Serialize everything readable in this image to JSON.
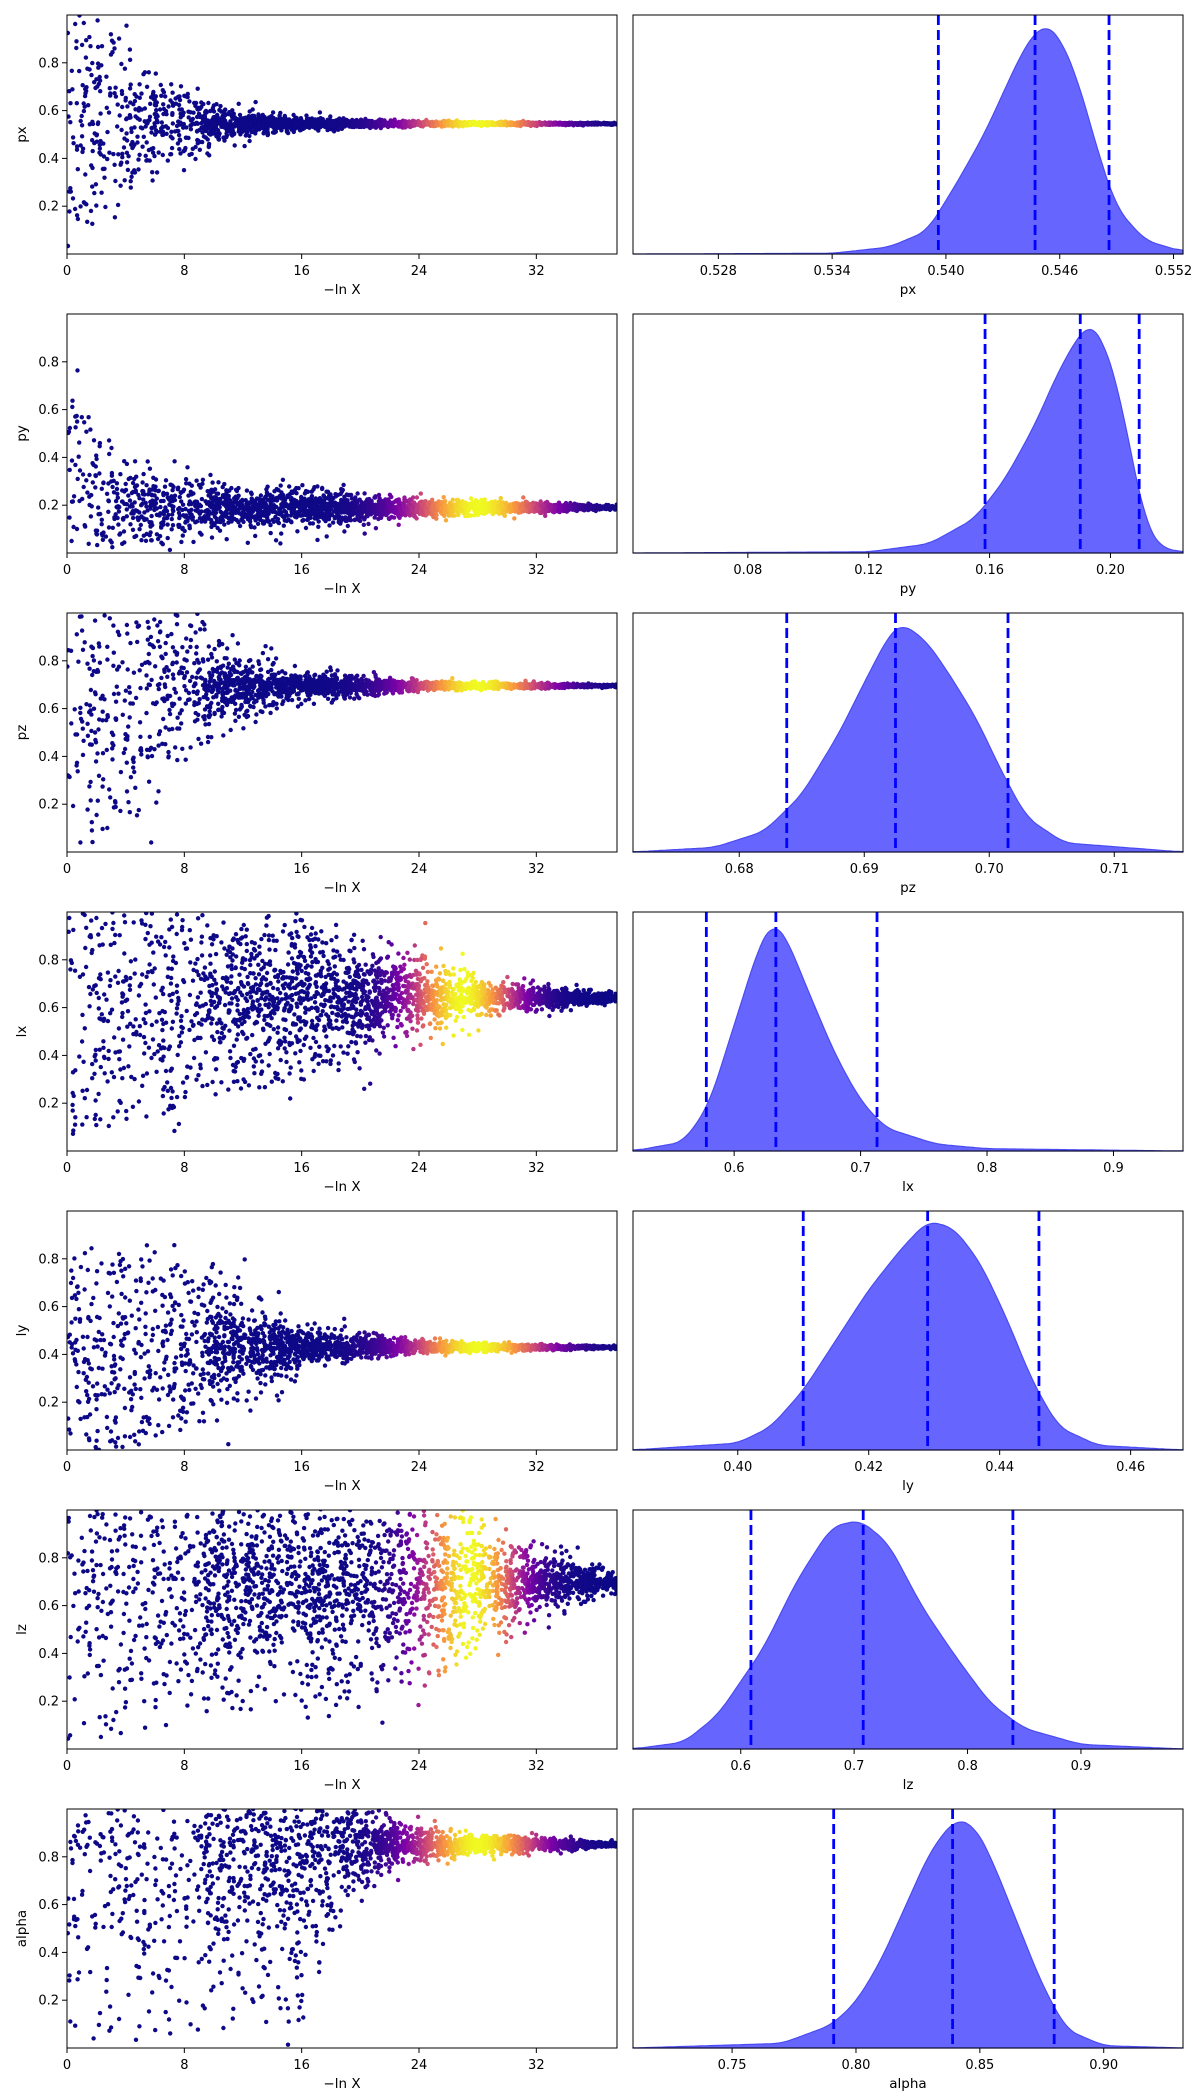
{
  "figure": {
    "colors": {
      "posterior_fill": "#6666ff",
      "posterior_edge": "#4a4af2",
      "quantile_line": "#0000ff",
      "trace_colormap": [
        "#0d0887",
        "#7e03a8",
        "#cc4778",
        "#f89540",
        "#f0f921"
      ]
    }
  },
  "chart_data": [
    {
      "type": "scatter",
      "name": "trace-px",
      "xlabel": "−ln X",
      "ylabel": "px",
      "xlim": [
        0,
        37.5
      ],
      "ylim": [
        0,
        1
      ],
      "x_ticks": [
        0,
        8,
        16,
        24,
        32
      ],
      "x_tick_labels": [
        "0",
        "8",
        "16",
        "24",
        "32"
      ],
      "y_ticks": [
        0.2,
        0.4,
        0.6,
        0.8
      ],
      "y_tick_labels": [
        "0.2",
        "0.4",
        "0.6",
        "0.8"
      ],
      "envelope": {
        "center": 0.545,
        "spread": [
          [
            0,
            0.5
          ],
          [
            3,
            0.42
          ],
          [
            6,
            0.22
          ],
          [
            10,
            0.1
          ],
          [
            16,
            0.03
          ],
          [
            24,
            0.012
          ],
          [
            37.5,
            0.004
          ]
        ],
        "floor": 0,
        "ceil": 1
      },
      "weight_peak": 28,
      "weight_width": 3.3
    },
    {
      "type": "area",
      "name": "posterior-px",
      "xlabel": "px",
      "xlim": [
        0.5235,
        0.5525
      ],
      "x_ticks": [
        0.528,
        0.534,
        0.54,
        0.546,
        0.552
      ],
      "x_tick_labels": [
        "0.528",
        "0.534",
        "0.540",
        "0.546",
        "0.552"
      ],
      "density": [
        [
          0.5235,
          0
        ],
        [
          0.534,
          0.003
        ],
        [
          0.537,
          0.03
        ],
        [
          0.539,
          0.1
        ],
        [
          0.5405,
          0.3
        ],
        [
          0.542,
          0.52
        ],
        [
          0.543,
          0.7
        ],
        [
          0.544,
          0.88
        ],
        [
          0.5448,
          0.98
        ],
        [
          0.5453,
          1.0
        ],
        [
          0.546,
          0.95
        ],
        [
          0.547,
          0.75
        ],
        [
          0.548,
          0.45
        ],
        [
          0.549,
          0.2
        ],
        [
          0.5505,
          0.06
        ],
        [
          0.5525,
          0.01
        ]
      ],
      "quantiles": [
        0.5396,
        0.5447,
        0.5486
      ]
    },
    {
      "type": "scatter",
      "name": "trace-py",
      "xlabel": "−ln X",
      "ylabel": "py",
      "xlim": [
        0,
        37.5
      ],
      "ylim": [
        0,
        1
      ],
      "x_ticks": [
        0,
        8,
        16,
        24,
        32
      ],
      "x_tick_labels": [
        "0",
        "8",
        "16",
        "24",
        "32"
      ],
      "y_ticks": [
        0.2,
        0.4,
        0.6,
        0.8
      ],
      "y_tick_labels": [
        "0.2",
        "0.4",
        "0.6",
        "0.8"
      ],
      "envelope": {
        "center": 0.19,
        "spread": [
          [
            0,
            0.8
          ],
          [
            1,
            0.6
          ],
          [
            2,
            0.4
          ],
          [
            4,
            0.2
          ],
          [
            8,
            0.14
          ],
          [
            16,
            0.1
          ],
          [
            24,
            0.045
          ],
          [
            37.5,
            0.01
          ]
        ],
        "floor": 0,
        "ceil": 1
      },
      "weight_peak": 28,
      "weight_width": 3.3
    },
    {
      "type": "area",
      "name": "posterior-py",
      "xlabel": "py",
      "xlim": [
        0.042,
        0.224
      ],
      "x_ticks": [
        0.08,
        0.12,
        0.16,
        0.2
      ],
      "x_tick_labels": [
        "0.08",
        "0.12",
        "0.16",
        "0.20"
      ],
      "density": [
        [
          0.042,
          0
        ],
        [
          0.12,
          0.005
        ],
        [
          0.14,
          0.04
        ],
        [
          0.155,
          0.15
        ],
        [
          0.165,
          0.32
        ],
        [
          0.175,
          0.56
        ],
        [
          0.183,
          0.8
        ],
        [
          0.19,
          0.96
        ],
        [
          0.193,
          1.0
        ],
        [
          0.197,
          0.95
        ],
        [
          0.203,
          0.7
        ],
        [
          0.208,
          0.35
        ],
        [
          0.212,
          0.12
        ],
        [
          0.216,
          0.03
        ],
        [
          0.224,
          0
        ]
      ],
      "quantiles": [
        0.1585,
        0.19,
        0.2095
      ]
    },
    {
      "type": "scatter",
      "name": "trace-pz",
      "xlabel": "−ln X",
      "ylabel": "pz",
      "xlim": [
        0,
        37.5
      ],
      "ylim": [
        0,
        1
      ],
      "x_ticks": [
        0,
        8,
        16,
        24,
        32
      ],
      "x_tick_labels": [
        "0",
        "8",
        "16",
        "24",
        "32"
      ],
      "y_ticks": [
        0.2,
        0.4,
        0.6,
        0.8
      ],
      "y_tick_labels": [
        "0.2",
        "0.4",
        "0.6",
        "0.8"
      ],
      "envelope": {
        "center": 0.695,
        "spread": [
          [
            0,
            0.7
          ],
          [
            4,
            0.6
          ],
          [
            8,
            0.35
          ],
          [
            12,
            0.15
          ],
          [
            16,
            0.07
          ],
          [
            24,
            0.025
          ],
          [
            37.5,
            0.005
          ]
        ],
        "floor": 0,
        "ceil": 1
      },
      "weight_peak": 28,
      "weight_width": 3.3
    },
    {
      "type": "area",
      "name": "posterior-pz",
      "xlabel": "pz",
      "xlim": [
        0.6715,
        0.7155
      ],
      "x_ticks": [
        0.68,
        0.69,
        0.7,
        0.71
      ],
      "x_tick_labels": [
        "0.68",
        "0.69",
        "0.70",
        "0.71"
      ],
      "density": [
        [
          0.6715,
          0
        ],
        [
          0.678,
          0.02
        ],
        [
          0.682,
          0.09
        ],
        [
          0.685,
          0.25
        ],
        [
          0.688,
          0.52
        ],
        [
          0.69,
          0.74
        ],
        [
          0.692,
          0.95
        ],
        [
          0.693,
          1.0
        ],
        [
          0.695,
          0.92
        ],
        [
          0.697,
          0.76
        ],
        [
          0.699,
          0.58
        ],
        [
          0.701,
          0.35
        ],
        [
          0.703,
          0.15
        ],
        [
          0.706,
          0.04
        ],
        [
          0.7155,
          0
        ]
      ],
      "quantiles": [
        0.6838,
        0.6925,
        0.7015
      ]
    },
    {
      "type": "scatter",
      "name": "trace-lx",
      "xlabel": "−ln X",
      "ylabel": "lx",
      "xlim": [
        0,
        37.5
      ],
      "ylim": [
        0,
        1
      ],
      "x_ticks": [
        0,
        8,
        16,
        24,
        32
      ],
      "x_tick_labels": [
        "0",
        "8",
        "16",
        "24",
        "32"
      ],
      "y_ticks": [
        0.2,
        0.4,
        0.6,
        0.8
      ],
      "y_tick_labels": [
        "0.2",
        "0.4",
        "0.6",
        "0.8"
      ],
      "envelope": {
        "center": 0.64,
        "spread": [
          [
            0,
            0.6
          ],
          [
            8,
            0.45
          ],
          [
            16,
            0.35
          ],
          [
            24,
            0.2
          ],
          [
            30,
            0.08
          ],
          [
            37.5,
            0.02
          ]
        ],
        "floor": 0,
        "ceil": 1
      },
      "weight_peak": 27,
      "weight_width": 2.6
    },
    {
      "type": "area",
      "name": "posterior-lx",
      "xlabel": "lx",
      "xlim": [
        0.52,
        0.955
      ],
      "x_ticks": [
        0.6,
        0.7,
        0.8,
        0.9
      ],
      "x_tick_labels": [
        "0.6",
        "0.7",
        "0.8",
        "0.9"
      ],
      "density": [
        [
          0.52,
          0
        ],
        [
          0.56,
          0.04
        ],
        [
          0.58,
          0.2
        ],
        [
          0.6,
          0.55
        ],
        [
          0.62,
          0.9
        ],
        [
          0.63,
          1.0
        ],
        [
          0.64,
          0.95
        ],
        [
          0.66,
          0.68
        ],
        [
          0.68,
          0.42
        ],
        [
          0.7,
          0.22
        ],
        [
          0.72,
          0.1
        ],
        [
          0.76,
          0.03
        ],
        [
          0.8,
          0.01
        ],
        [
          0.955,
          0
        ]
      ],
      "quantiles": [
        0.578,
        0.633,
        0.713
      ]
    },
    {
      "type": "scatter",
      "name": "trace-ly",
      "xlabel": "−ln X",
      "ylabel": "ly",
      "xlim": [
        0,
        37.5
      ],
      "ylim": [
        0,
        1
      ],
      "x_ticks": [
        0,
        8,
        16,
        24,
        32
      ],
      "x_tick_labels": [
        "0",
        "8",
        "16",
        "24",
        "32"
      ],
      "y_ticks": [
        0.2,
        0.4,
        0.6,
        0.8
      ],
      "y_tick_labels": [
        "0.2",
        "0.4",
        "0.6",
        "0.8"
      ],
      "envelope": {
        "center": 0.43,
        "spread": [
          [
            0,
            0.45
          ],
          [
            6,
            0.4
          ],
          [
            14,
            0.2
          ],
          [
            16.5,
            0.1
          ],
          [
            24,
            0.03
          ],
          [
            37.5,
            0.005
          ]
        ],
        "floor": 0,
        "ceil": 1
      },
      "weight_peak": 28,
      "weight_width": 3.3
    },
    {
      "type": "area",
      "name": "posterior-ly",
      "xlabel": "ly",
      "xlim": [
        0.384,
        0.468
      ],
      "x_ticks": [
        0.4,
        0.42,
        0.44,
        0.46
      ],
      "x_tick_labels": [
        "0.40",
        "0.42",
        "0.44",
        "0.46"
      ],
      "density": [
        [
          0.384,
          0
        ],
        [
          0.4,
          0.03
        ],
        [
          0.405,
          0.1
        ],
        [
          0.41,
          0.26
        ],
        [
          0.415,
          0.48
        ],
        [
          0.42,
          0.7
        ],
        [
          0.425,
          0.88
        ],
        [
          0.429,
          1.0
        ],
        [
          0.433,
          0.97
        ],
        [
          0.437,
          0.82
        ],
        [
          0.441,
          0.58
        ],
        [
          0.445,
          0.3
        ],
        [
          0.449,
          0.1
        ],
        [
          0.455,
          0.02
        ],
        [
          0.468,
          0
        ]
      ],
      "quantiles": [
        0.41,
        0.429,
        0.446
      ]
    },
    {
      "type": "scatter",
      "name": "trace-lz",
      "xlabel": "−ln X",
      "ylabel": "lz",
      "xlim": [
        0,
        37.5
      ],
      "ylim": [
        0,
        1
      ],
      "x_ticks": [
        0,
        8,
        16,
        24,
        32
      ],
      "x_tick_labels": [
        "0",
        "8",
        "16",
        "24",
        "32"
      ],
      "y_ticks": [
        0.2,
        0.4,
        0.6,
        0.8
      ],
      "y_tick_labels": [
        "0.2",
        "0.4",
        "0.6",
        "0.8"
      ],
      "envelope": {
        "center": 0.7,
        "spread": [
          [
            0,
            0.7
          ],
          [
            12,
            0.55
          ],
          [
            24,
            0.45
          ],
          [
            28,
            0.3
          ],
          [
            34,
            0.12
          ],
          [
            37.5,
            0.04
          ]
        ],
        "floor": 0,
        "ceil": 1
      },
      "weight_peak": 27.5,
      "weight_width": 2.4
    },
    {
      "type": "area",
      "name": "posterior-lz",
      "xlabel": "lz",
      "xlim": [
        0.505,
        0.99
      ],
      "x_ticks": [
        0.6,
        0.7,
        0.8,
        0.9
      ],
      "x_tick_labels": [
        "0.6",
        "0.7",
        "0.8",
        "0.9"
      ],
      "density": [
        [
          0.505,
          0
        ],
        [
          0.55,
          0.03
        ],
        [
          0.58,
          0.15
        ],
        [
          0.62,
          0.44
        ],
        [
          0.65,
          0.74
        ],
        [
          0.68,
          0.97
        ],
        [
          0.705,
          1.0
        ],
        [
          0.73,
          0.9
        ],
        [
          0.76,
          0.62
        ],
        [
          0.79,
          0.4
        ],
        [
          0.82,
          0.2
        ],
        [
          0.85,
          0.09
        ],
        [
          0.9,
          0.02
        ],
        [
          0.99,
          0
        ]
      ],
      "quantiles": [
        0.609,
        0.708,
        0.84
      ]
    },
    {
      "type": "scatter",
      "name": "trace-alpha",
      "xlabel": "−ln X",
      "ylabel": "alpha",
      "xlim": [
        0,
        37.5
      ],
      "ylim": [
        0,
        1
      ],
      "x_ticks": [
        0,
        8,
        16,
        24,
        32
      ],
      "x_tick_labels": [
        "0",
        "8",
        "16",
        "24",
        "32"
      ],
      "y_ticks": [
        0.2,
        0.4,
        0.6,
        0.8
      ],
      "y_tick_labels": [
        "0.2",
        "0.4",
        "0.6",
        "0.8"
      ],
      "envelope": {
        "center": 0.85,
        "spread": [
          [
            0,
            0.85
          ],
          [
            16,
            0.75
          ],
          [
            18,
            0.4
          ],
          [
            22,
            0.12
          ],
          [
            28,
            0.05
          ],
          [
            37.5,
            0.01
          ]
        ],
        "floor": 0,
        "ceil": 1
      },
      "weight_peak": 28,
      "weight_width": 3.0
    },
    {
      "type": "area",
      "name": "posterior-alpha",
      "xlabel": "alpha",
      "xlim": [
        0.71,
        0.932
      ],
      "x_ticks": [
        0.75,
        0.8,
        0.85,
        0.9
      ],
      "x_tick_labels": [
        "0.75",
        "0.80",
        "0.85",
        "0.90"
      ],
      "density": [
        [
          0.71,
          0
        ],
        [
          0.77,
          0.02
        ],
        [
          0.79,
          0.1
        ],
        [
          0.8,
          0.2
        ],
        [
          0.81,
          0.38
        ],
        [
          0.82,
          0.62
        ],
        [
          0.83,
          0.86
        ],
        [
          0.84,
          1.0
        ],
        [
          0.848,
          0.97
        ],
        [
          0.855,
          0.82
        ],
        [
          0.865,
          0.55
        ],
        [
          0.875,
          0.28
        ],
        [
          0.885,
          0.08
        ],
        [
          0.9,
          0.01
        ],
        [
          0.932,
          0
        ]
      ],
      "quantiles": [
        0.791,
        0.839,
        0.88
      ]
    }
  ]
}
